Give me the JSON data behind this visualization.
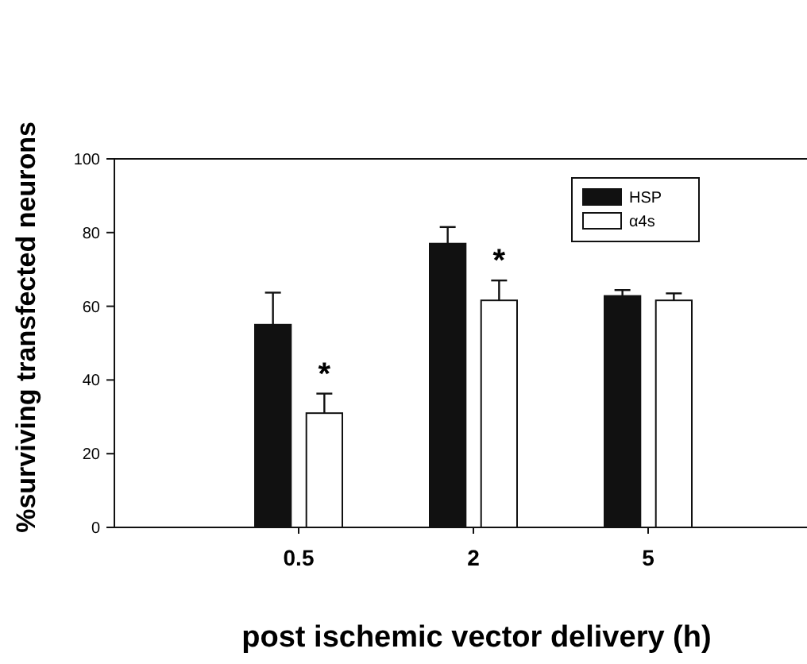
{
  "chart_data": {
    "type": "bar",
    "xlabel": "post ischemic vector delivery (h)",
    "ylabel": "%surviving transfected neurons",
    "categories": [
      "0.5",
      "2",
      "5"
    ],
    "series": [
      {
        "name": "HSP",
        "color": "#111111",
        "values": [
          55,
          77,
          62.8
        ],
        "errors": [
          8.7,
          4.5,
          1.6
        ]
      },
      {
        "name": "α4s",
        "color": "#ffffff",
        "values": [
          31,
          61.6,
          61.6
        ],
        "errors": [
          5.3,
          5.4,
          1.9
        ]
      }
    ],
    "ylim": [
      0,
      100
    ],
    "yticks": [
      0,
      20,
      40,
      60,
      80,
      100
    ],
    "legend": "top right",
    "grid": false,
    "annotations": [
      {
        "text": "*",
        "x": "0.5",
        "y": 36.3
      },
      {
        "text": "*",
        "x": "2",
        "y": 67
      }
    ]
  }
}
